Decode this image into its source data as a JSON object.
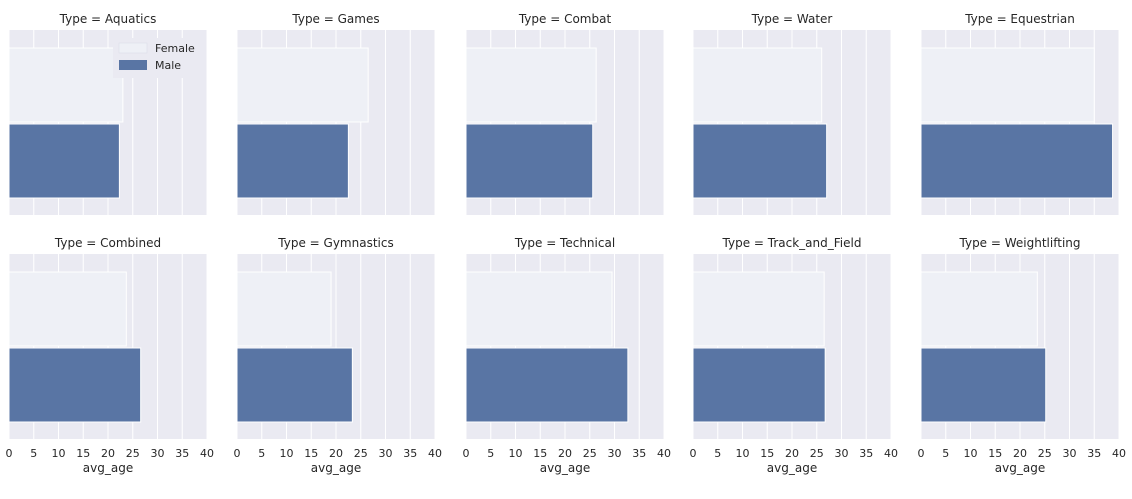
{
  "chart_data": {
    "type": "bar",
    "orientation": "horizontal",
    "facet_prefix": "Type = ",
    "xlabel": "avg_age",
    "xlim": [
      0,
      40
    ],
    "xticks": [
      0,
      5,
      10,
      15,
      20,
      25,
      30,
      35,
      40
    ],
    "grid": true,
    "legend": {
      "placement": "top-right",
      "entries": [
        "Female",
        "Male"
      ]
    },
    "colors": {
      "Female": "#EEF0F6",
      "Male": "#5975A4",
      "plot_background": "#EAEAF2",
      "grid": "#ffffff"
    },
    "categories": [
      "Female",
      "Male"
    ],
    "panels": [
      {
        "title": "Type = Aquatics",
        "facet": "Aquatics",
        "values": {
          "Female": 23.0,
          "Male": 22.3
        }
      },
      {
        "title": "Type = Games",
        "facet": "Games",
        "values": {
          "Female": 26.5,
          "Male": 22.5
        }
      },
      {
        "title": "Type = Combat",
        "facet": "Combat",
        "values": {
          "Female": 26.3,
          "Male": 25.6
        }
      },
      {
        "title": "Type = Water",
        "facet": "Water",
        "values": {
          "Female": 26.0,
          "Male": 27.0
        }
      },
      {
        "title": "Type = Equestrian",
        "facet": "Equestrian",
        "values": {
          "Female": 35.0,
          "Male": 38.7
        }
      },
      {
        "title": "Type = Combined",
        "facet": "Combined",
        "values": {
          "Female": 23.7,
          "Male": 26.6
        }
      },
      {
        "title": "Type = Gymnastics",
        "facet": "Gymnastics",
        "values": {
          "Female": 19.0,
          "Male": 23.3
        }
      },
      {
        "title": "Type = Technical",
        "facet": "Technical",
        "values": {
          "Female": 29.5,
          "Male": 32.7
        }
      },
      {
        "title": "Type = Track_and_Field",
        "facet": "Track_and_Field",
        "values": {
          "Female": 26.5,
          "Male": 26.7
        }
      },
      {
        "title": "Type = Weightlifting",
        "facet": "Weightlifting",
        "values": {
          "Female": 23.5,
          "Male": 25.2
        }
      }
    ]
  }
}
